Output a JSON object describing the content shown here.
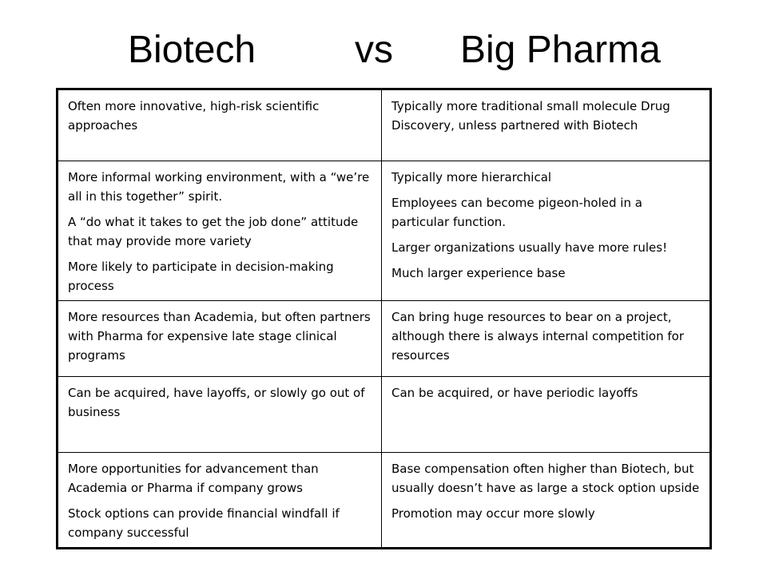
{
  "title": {
    "left": "Biotech",
    "middle": "vs",
    "right": "Big Pharma"
  },
  "rows": [
    {
      "biotech": [
        "Often more innovative, high-risk scientific approaches"
      ],
      "pharma": [
        "Typically more traditional small molecule Drug Discovery, unless partnered with Biotech"
      ]
    },
    {
      "biotech": [
        "More informal working environment, with a “we’re all in this together” spirit.",
        "A “do what it takes to get the job done” attitude that may provide more variety",
        "More likely to participate in decision-making process"
      ],
      "pharma": [
        "Typically more hierarchical",
        "Employees can become pigeon-holed in a particular function.",
        "Larger organizations usually have more rules!",
        "Much larger experience base"
      ]
    },
    {
      "biotech": [
        "More resources than Academia, but often partners with Pharma for expensive late stage clinical programs"
      ],
      "pharma": [
        "Can bring huge resources to bear on a project, although there is always internal competition for resources"
      ]
    },
    {
      "biotech": [
        "Can be acquired, have layoffs, or slowly go out of business"
      ],
      "pharma": [
        "Can be acquired, or have periodic layoffs"
      ]
    },
    {
      "biotech": [
        "More opportunities for advancement than Academia or Pharma if company grows",
        "Stock options can provide financial windfall if company successful"
      ],
      "pharma": [
        "Base compensation often higher than Biotech, but usually doesn’t have as large a stock option upside",
        "Promotion may occur more slowly"
      ]
    }
  ]
}
